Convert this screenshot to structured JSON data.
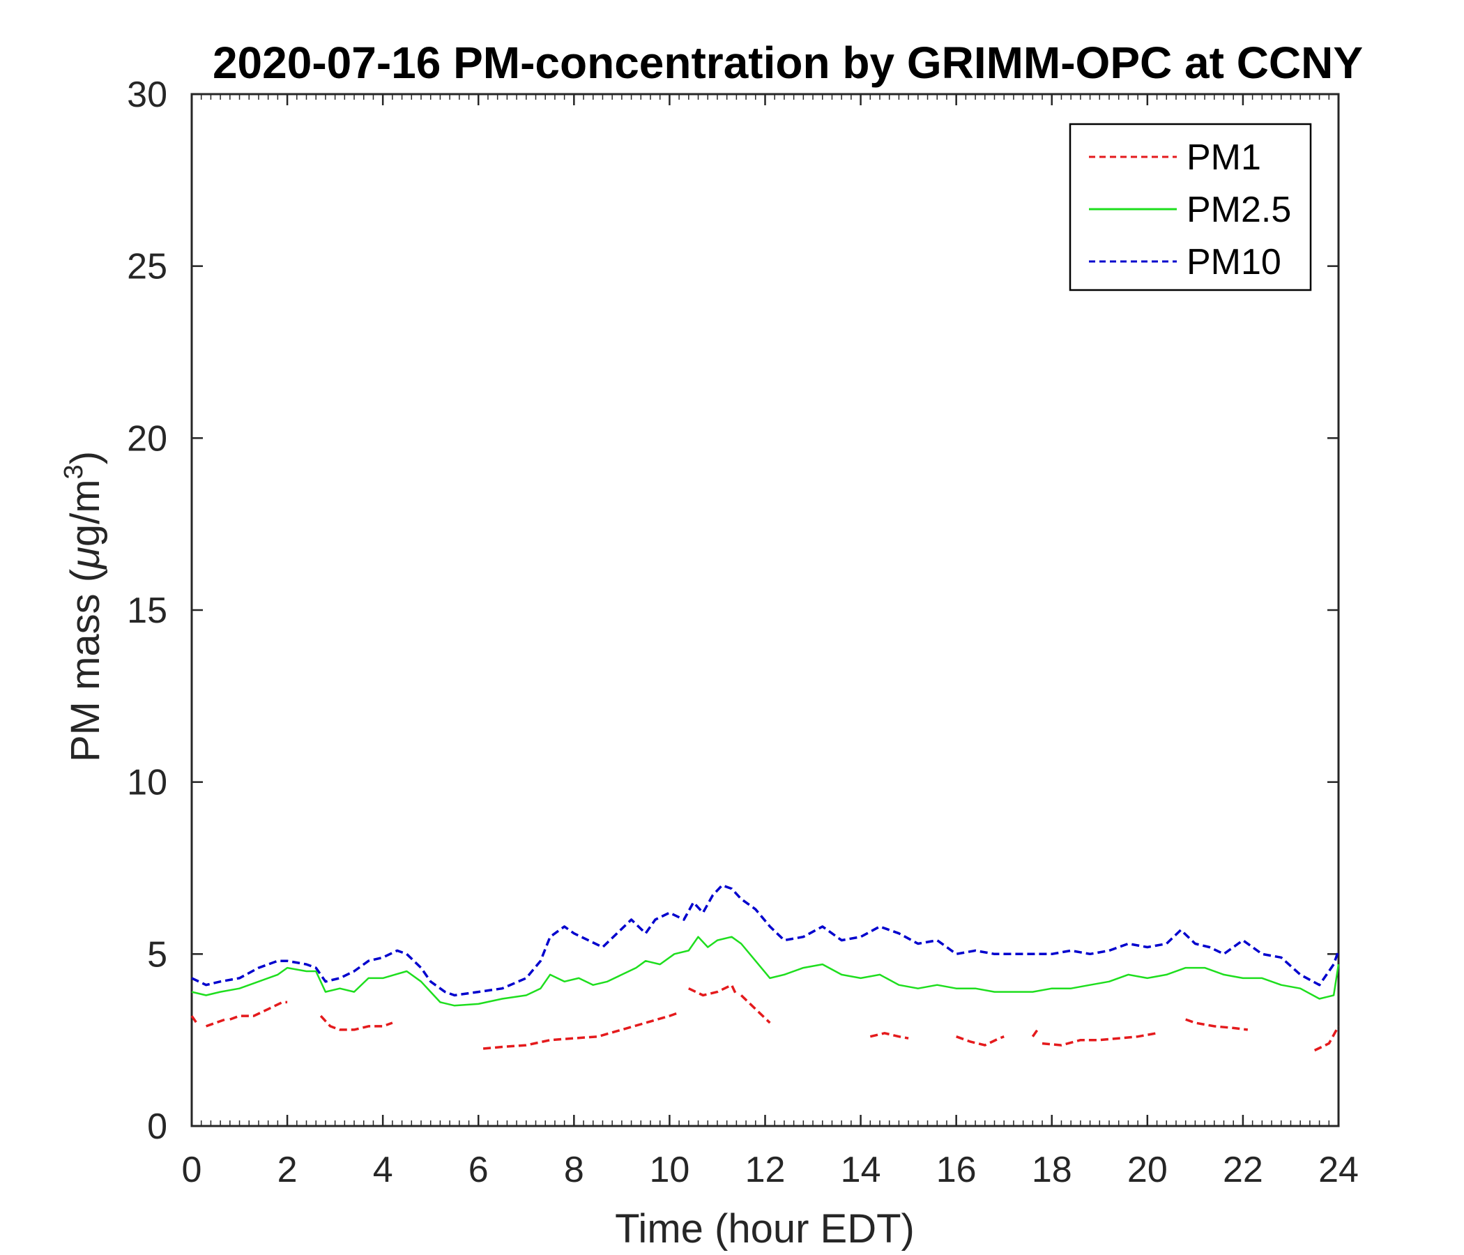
{
  "chart_data": {
    "type": "line",
    "title": "2020-07-16 PM-concentration by GRIMM-OPC at CCNY",
    "xlabel": "Time (hour EDT)",
    "ylabel_main": "PM mass (",
    "ylabel_mu": "μ",
    "ylabel_unit": "g/m",
    "ylabel_exp": "3",
    "ylabel_close": ")",
    "xlim": [
      0,
      24
    ],
    "ylim": [
      0,
      30
    ],
    "xticks": [
      "0",
      "2",
      "4",
      "6",
      "8",
      "10",
      "12",
      "14",
      "16",
      "18",
      "20",
      "22",
      "24"
    ],
    "yticks": [
      "0",
      "5",
      "10",
      "15",
      "20",
      "25",
      "30"
    ],
    "grid": false,
    "legend_position": "top-right",
    "series": [
      {
        "name": "PM1",
        "color": "#e41a1c",
        "style": "dashed",
        "x": [
          0.0,
          0.1,
          null,
          0.3,
          0.5,
          0.7,
          null,
          0.8,
          1.0,
          1.3,
          1.6,
          1.9,
          2.0,
          null,
          2.7,
          2.9,
          3.1,
          3.4,
          3.7,
          4.0,
          4.2,
          null,
          6.1,
          6.5,
          7.0,
          7.5,
          8.0,
          8.5,
          9.0,
          9.5,
          10.0,
          10.2,
          null,
          10.4,
          10.7,
          11.0,
          11.3,
          11.4,
          null,
          11.5,
          11.8,
          12.1,
          null,
          14.2,
          14.5,
          14.8,
          15.0,
          null,
          16.0,
          16.3,
          16.6,
          16.9,
          17.0,
          null,
          17.6,
          17.7,
          null,
          17.8,
          18.2,
          18.6,
          19.0,
          19.4,
          19.8,
          20.2,
          null,
          20.8,
          21.0,
          21.4,
          21.8,
          22.1,
          null,
          23.5,
          23.8,
          24.0
        ],
        "y": [
          3.2,
          3.0,
          null,
          2.9,
          3.0,
          3.1,
          null,
          3.1,
          3.2,
          3.2,
          3.4,
          3.6,
          3.6,
          null,
          3.2,
          2.9,
          2.8,
          2.8,
          2.9,
          2.9,
          3.0,
          null,
          2.25,
          2.3,
          2.35,
          2.5,
          2.55,
          2.6,
          2.8,
          3.0,
          3.2,
          3.3,
          null,
          4.0,
          3.8,
          3.9,
          4.1,
          3.8,
          null,
          3.8,
          3.4,
          3.0,
          null,
          2.6,
          2.7,
          2.6,
          2.55,
          null,
          2.6,
          2.45,
          2.35,
          2.55,
          2.6,
          null,
          2.6,
          2.8,
          null,
          2.4,
          2.35,
          2.5,
          2.5,
          2.55,
          2.6,
          2.7,
          null,
          3.1,
          3.0,
          2.9,
          2.85,
          2.8,
          null,
          2.2,
          2.4,
          2.9
        ]
      },
      {
        "name": "PM2.5",
        "color": "#1ede1e",
        "style": "solid",
        "x": [
          0.0,
          0.3,
          0.6,
          1.0,
          1.4,
          1.8,
          2.0,
          2.4,
          2.6,
          2.8,
          3.1,
          3.4,
          3.7,
          4.0,
          4.5,
          4.8,
          5.0,
          5.2,
          5.5,
          6.0,
          6.5,
          7.0,
          7.3,
          7.5,
          7.8,
          8.1,
          8.4,
          8.7,
          9.0,
          9.3,
          9.5,
          9.8,
          10.1,
          10.4,
          10.6,
          10.8,
          11.0,
          11.3,
          11.5,
          11.8,
          12.1,
          12.4,
          12.8,
          13.2,
          13.6,
          14.0,
          14.4,
          14.8,
          15.2,
          15.6,
          16.0,
          16.4,
          16.8,
          17.2,
          17.6,
          18.0,
          18.4,
          18.8,
          19.2,
          19.6,
          20.0,
          20.4,
          20.8,
          21.2,
          21.6,
          22.0,
          22.4,
          22.8,
          23.2,
          23.6,
          23.9,
          24.0
        ],
        "y": [
          3.9,
          3.8,
          3.9,
          4.0,
          4.2,
          4.4,
          4.6,
          4.5,
          4.5,
          3.9,
          4.0,
          3.9,
          4.3,
          4.3,
          4.5,
          4.2,
          3.9,
          3.6,
          3.5,
          3.55,
          3.7,
          3.8,
          4.0,
          4.4,
          4.2,
          4.3,
          4.1,
          4.2,
          4.4,
          4.6,
          4.8,
          4.7,
          5.0,
          5.1,
          5.5,
          5.2,
          5.4,
          5.5,
          5.3,
          4.8,
          4.3,
          4.4,
          4.6,
          4.7,
          4.4,
          4.3,
          4.4,
          4.1,
          4.0,
          4.1,
          4.0,
          4.0,
          3.9,
          3.9,
          3.9,
          4.0,
          4.0,
          4.1,
          4.2,
          4.4,
          4.3,
          4.4,
          4.6,
          4.6,
          4.4,
          4.3,
          4.3,
          4.1,
          4.0,
          3.7,
          3.8,
          4.7
        ]
      },
      {
        "name": "PM10",
        "color": "#0000cd",
        "style": "dashed",
        "x": [
          0.0,
          0.3,
          0.6,
          1.0,
          1.4,
          1.8,
          2.0,
          2.4,
          2.6,
          2.8,
          3.1,
          3.4,
          3.7,
          4.0,
          4.3,
          4.5,
          4.8,
          5.0,
          5.3,
          5.5,
          6.0,
          6.5,
          7.0,
          7.3,
          7.5,
          7.8,
          8.0,
          8.3,
          8.6,
          8.9,
          9.2,
          9.5,
          9.7,
          10.0,
          10.3,
          10.5,
          10.7,
          10.9,
          11.1,
          11.3,
          11.5,
          11.8,
          12.1,
          12.4,
          12.8,
          13.2,
          13.6,
          14.0,
          14.4,
          14.8,
          15.2,
          15.6,
          16.0,
          16.4,
          16.8,
          17.2,
          17.6,
          18.0,
          18.4,
          18.8,
          19.2,
          19.6,
          20.0,
          20.4,
          20.7,
          21.0,
          21.3,
          21.6,
          22.0,
          22.4,
          22.8,
          23.2,
          23.6,
          23.9,
          24.0
        ],
        "y": [
          4.3,
          4.1,
          4.2,
          4.3,
          4.6,
          4.8,
          4.8,
          4.7,
          4.6,
          4.2,
          4.3,
          4.5,
          4.8,
          4.9,
          5.1,
          5.0,
          4.6,
          4.2,
          3.9,
          3.8,
          3.9,
          4.0,
          4.3,
          4.8,
          5.5,
          5.8,
          5.6,
          5.4,
          5.2,
          5.6,
          6.0,
          5.6,
          6.0,
          6.2,
          6.0,
          6.5,
          6.2,
          6.7,
          7.0,
          6.9,
          6.6,
          6.3,
          5.8,
          5.4,
          5.5,
          5.8,
          5.4,
          5.5,
          5.8,
          5.6,
          5.3,
          5.4,
          5.0,
          5.1,
          5.0,
          5.0,
          5.0,
          5.0,
          5.1,
          5.0,
          5.1,
          5.3,
          5.2,
          5.3,
          5.7,
          5.3,
          5.2,
          5.0,
          5.4,
          5.0,
          4.9,
          4.4,
          4.1,
          4.7,
          5.1
        ]
      }
    ]
  }
}
